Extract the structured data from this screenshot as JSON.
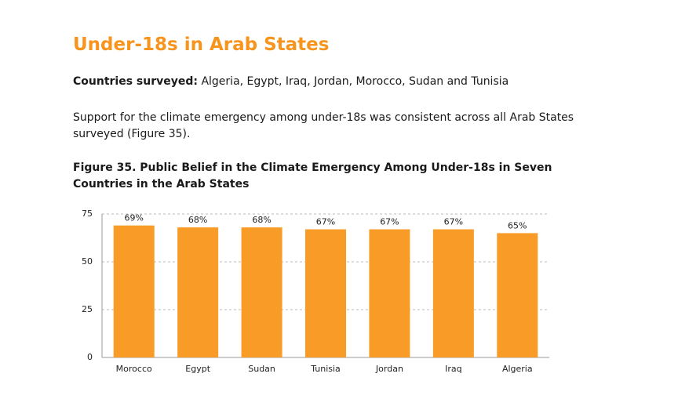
{
  "heading": "Under-18s in Arab States",
  "countries_label": "Countries surveyed:",
  "countries": "Algeria, Egypt, Iraq, Jordan, Morocco, Sudan and Tunisia",
  "paragraph": "Support for the climate emergency among under-18s was consistent across all Arab States surveyed (Figure 35).",
  "chart_data": {
    "type": "bar",
    "title": "Figure 35. Public Belief in the Climate Emergency Among Under-18s in Seven Countries in the Arab States",
    "categories": [
      "Morocco",
      "Egypt",
      "Sudan",
      "Tunisia",
      "Jordan",
      "Iraq",
      "Algeria"
    ],
    "values": [
      69,
      68,
      68,
      67,
      67,
      67,
      65
    ],
    "value_labels": [
      "69%",
      "68%",
      "68%",
      "67%",
      "67%",
      "67%",
      "65%"
    ],
    "color": "#f89c27",
    "ylim": [
      0,
      75
    ],
    "yticks": [
      0,
      25,
      50,
      75
    ],
    "grid": true
  }
}
